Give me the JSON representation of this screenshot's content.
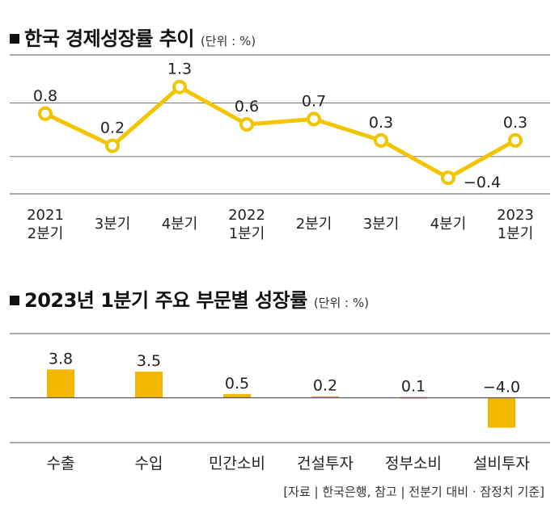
{
  "chart_data": [
    {
      "type": "line",
      "title": "한국 경제성장률 추이",
      "unit": "(단위 : %)",
      "categories": [
        [
          "2021",
          "2분기"
        ],
        [
          "3분기"
        ],
        [
          "4분기"
        ],
        [
          "2022",
          "1분기"
        ],
        [
          "2분기"
        ],
        [
          "3분기"
        ],
        [
          "4분기"
        ],
        [
          "2023",
          "1분기"
        ]
      ],
      "values": [
        0.8,
        0.2,
        1.3,
        0.6,
        0.7,
        0.3,
        -0.4,
        0.3
      ],
      "value_labels": [
        "0.8",
        "0.2",
        "1.3",
        "0.6",
        "0.7",
        "0.3",
        "−0.4",
        "0.3"
      ],
      "ylim": [
        -0.7,
        1.9
      ],
      "gridlines": [
        1.0,
        0.0
      ],
      "color": "#f2c500"
    },
    {
      "type": "bar",
      "title": "2023년 1분기 주요 부문별 성장률",
      "unit": "(단위 : %)",
      "categories": [
        "수출",
        "수입",
        "민간소비",
        "건설투자",
        "정부소비",
        "설비투자"
      ],
      "values": [
        3.8,
        3.5,
        0.5,
        0.2,
        0.1,
        -4.0
      ],
      "value_labels": [
        "3.8",
        "3.5",
        "0.5",
        "0.2",
        "0.1",
        "−4.0"
      ],
      "ylim": [
        -6.0,
        8.6
      ],
      "color": "#f2b800"
    }
  ],
  "source": "[자료 | 한국은행, 참고 | 전분기 대비 · 잠정치 기준]"
}
